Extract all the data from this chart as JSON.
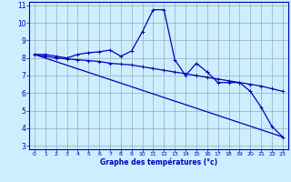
{
  "xlabel": "Graphe des températures (°c)",
  "background_color": "#cceeff",
  "grid_color": "#99aabb",
  "line_color": "#0000bb",
  "xlim": [
    -0.5,
    23.5
  ],
  "ylim": [
    2.8,
    11.2
  ],
  "xticks": [
    0,
    1,
    2,
    3,
    4,
    5,
    6,
    7,
    8,
    9,
    10,
    11,
    12,
    13,
    14,
    15,
    16,
    17,
    18,
    19,
    20,
    21,
    22,
    23
  ],
  "yticks": [
    3,
    4,
    5,
    6,
    7,
    8,
    9,
    10,
    11
  ],
  "line1_x": [
    0,
    1,
    2,
    3,
    4,
    5,
    6,
    7,
    8,
    9,
    10,
    11,
    12,
    13,
    14,
    15,
    16,
    17,
    18,
    19,
    20,
    21,
    22,
    23
  ],
  "line1_y": [
    8.2,
    8.2,
    8.1,
    8.0,
    8.2,
    8.3,
    8.35,
    8.45,
    8.1,
    8.4,
    9.5,
    10.75,
    10.75,
    7.9,
    7.0,
    7.7,
    7.2,
    6.6,
    6.6,
    6.6,
    6.1,
    5.2,
    4.1,
    3.5
  ],
  "line2_x": [
    0,
    1,
    2,
    3,
    4,
    5,
    6,
    7,
    8,
    9,
    10,
    11,
    12,
    13,
    14,
    15,
    16,
    17,
    18,
    19,
    20,
    21,
    22,
    23
  ],
  "line2_y": [
    8.2,
    8.1,
    8.0,
    7.95,
    7.9,
    7.85,
    7.8,
    7.7,
    7.65,
    7.6,
    7.5,
    7.4,
    7.3,
    7.2,
    7.1,
    7.0,
    6.9,
    6.8,
    6.7,
    6.6,
    6.5,
    6.4,
    6.25,
    6.1
  ],
  "line3_x": [
    0,
    23
  ],
  "line3_y": [
    8.2,
    3.5
  ],
  "xlabel_fontsize": 5.5,
  "tick_fontsize_x": 4.5,
  "tick_fontsize_y": 5.5
}
